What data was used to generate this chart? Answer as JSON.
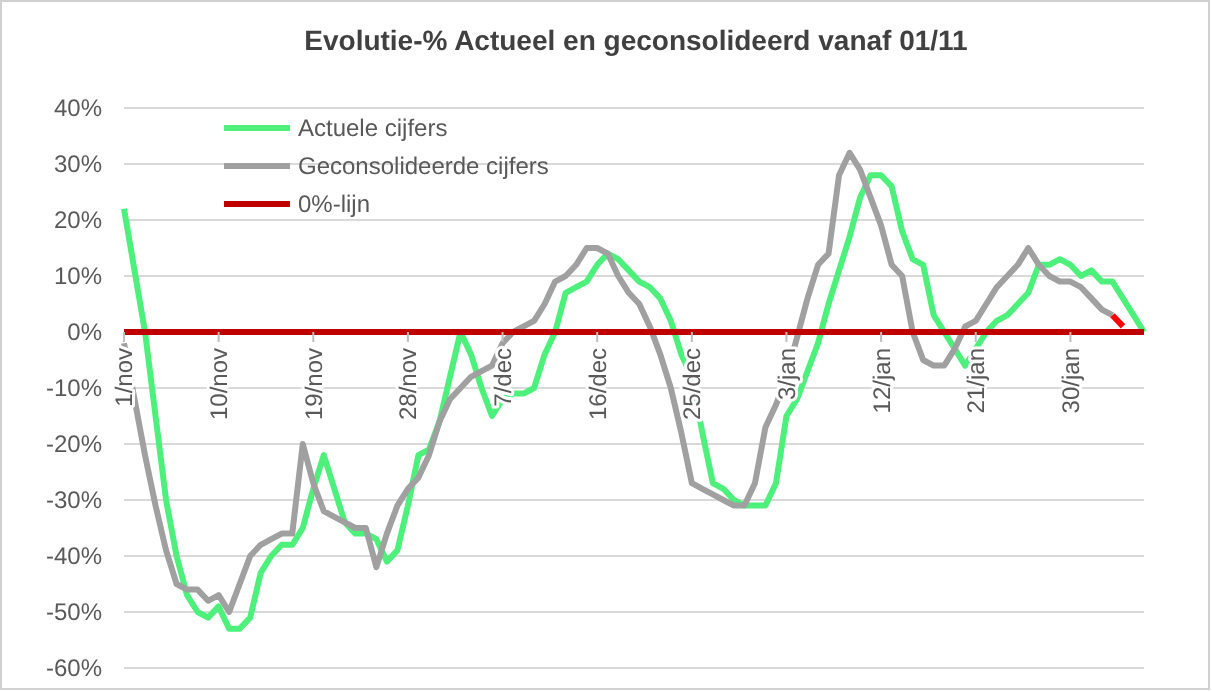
{
  "chart_data": {
    "type": "line",
    "title": "Evolutie-% Actueel en geconsolideerd vanaf 01/11",
    "categories": [
      "1/nov",
      null,
      null,
      null,
      null,
      null,
      null,
      null,
      null,
      "10/nov",
      null,
      null,
      null,
      null,
      null,
      null,
      null,
      null,
      "19/nov",
      null,
      null,
      null,
      null,
      null,
      null,
      null,
      null,
      "28/nov",
      null,
      null,
      null,
      null,
      null,
      null,
      null,
      null,
      "7/dec",
      null,
      null,
      null,
      null,
      null,
      null,
      null,
      null,
      "16/dec",
      null,
      null,
      null,
      null,
      null,
      null,
      null,
      null,
      "25/dec",
      null,
      null,
      null,
      null,
      null,
      null,
      null,
      null,
      "3/jan",
      null,
      null,
      null,
      null,
      null,
      null,
      null,
      null,
      "12/jan",
      null,
      null,
      null,
      null,
      null,
      null,
      null,
      null,
      "21/jan",
      null,
      null,
      null,
      null,
      null,
      null,
      null,
      null,
      "30/jan",
      null,
      null,
      null,
      null,
      null,
      null,
      null
    ],
    "series": [
      {
        "name": "Actuele cijfers",
        "color": "#4cf07a",
        "values": [
          22,
          11,
          0,
          -15,
          -30,
          -40,
          -47,
          -50,
          -51,
          -49,
          -53,
          -53,
          -51,
          -43,
          -40,
          -38,
          -38,
          -35,
          -28,
          -22,
          -28,
          -34,
          -36,
          -36,
          -37,
          -41,
          -39,
          -31,
          -22,
          -21,
          -16,
          -8,
          0,
          -4,
          -10,
          -15,
          -12,
          -11,
          -11,
          -10,
          -4,
          0,
          7,
          8,
          9,
          12,
          14,
          13,
          11,
          9,
          8,
          6,
          2,
          -4,
          -8,
          -18,
          -27,
          -28,
          -30,
          -31,
          -31,
          -31,
          -27,
          -15,
          -12,
          -7,
          -2,
          5,
          11,
          17,
          24,
          28,
          28,
          26,
          18,
          13,
          12,
          3,
          0,
          -3,
          -6,
          -3,
          0,
          2,
          3,
          5,
          7,
          12,
          12,
          13,
          12,
          10,
          11,
          9,
          9,
          6,
          3,
          0
        ]
      },
      {
        "name": "Geconsolideerde cijfers",
        "color": "#a0a0a0",
        "values": [
          -2,
          -12,
          -22,
          -31,
          -39,
          -45,
          -46,
          -46,
          -48,
          -47,
          -50,
          -45,
          -40,
          -38,
          -37,
          -36,
          -36,
          -20,
          -27,
          -32,
          -33,
          -34,
          -35,
          -35,
          -42,
          -36,
          -31,
          -28,
          -26,
          -22,
          -16,
          -12,
          -10,
          -8,
          -7,
          -6,
          -2,
          0,
          1,
          2,
          5,
          9,
          10,
          12,
          15,
          15,
          14,
          10,
          7,
          5,
          1,
          -4,
          -10,
          -18,
          -27,
          -28,
          -29,
          -30,
          -31,
          -31,
          -27,
          -17,
          -13,
          -8,
          -1,
          6,
          12,
          14,
          28,
          32,
          29,
          24,
          19,
          12,
          10,
          0,
          -5,
          -6,
          -6,
          -3,
          1,
          2,
          5,
          8,
          10,
          12,
          15,
          12,
          10,
          9,
          9,
          8,
          6,
          4,
          3,
          null,
          null,
          null
        ]
      },
      {
        "name": "0%-lijn",
        "color": "#c00000",
        "values": [
          0,
          0,
          0,
          0,
          0,
          0,
          0,
          0,
          0,
          0,
          0,
          0,
          0,
          0,
          0,
          0,
          0,
          0,
          0,
          0,
          0,
          0,
          0,
          0,
          0,
          0,
          0,
          0,
          0,
          0,
          0,
          0,
          0,
          0,
          0,
          0,
          0,
          0,
          0,
          0,
          0,
          0,
          0,
          0,
          0,
          0,
          0,
          0,
          0,
          0,
          0,
          0,
          0,
          0,
          0,
          0,
          0,
          0,
          0,
          0,
          0,
          0,
          0,
          0,
          0,
          0,
          0,
          0,
          0,
          0,
          0,
          0,
          0,
          0,
          0,
          0,
          0,
          0,
          0,
          0,
          0,
          0,
          0,
          0,
          0,
          0,
          0,
          0,
          0,
          0,
          0,
          0,
          0,
          0,
          0,
          0,
          0,
          0
        ]
      },
      {
        "color": "#ff0000",
        "values": [
          null,
          null,
          null,
          null,
          null,
          null,
          null,
          null,
          null,
          null,
          null,
          null,
          null,
          null,
          null,
          null,
          null,
          null,
          null,
          null,
          null,
          null,
          null,
          null,
          null,
          null,
          null,
          null,
          null,
          null,
          null,
          null,
          null,
          null,
          null,
          null,
          null,
          null,
          null,
          null,
          null,
          null,
          null,
          null,
          null,
          null,
          null,
          null,
          null,
          null,
          null,
          null,
          null,
          null,
          null,
          null,
          null,
          null,
          null,
          null,
          null,
          null,
          null,
          null,
          null,
          null,
          null,
          null,
          null,
          null,
          null,
          null,
          null,
          null,
          null,
          null,
          null,
          null,
          null,
          null,
          null,
          null,
          null,
          null,
          null,
          null,
          null,
          null,
          null,
          null,
          null,
          null,
          null,
          null,
          3,
          1,
          null,
          null
        ]
      }
    ],
    "ylim": [
      -60,
      40
    ],
    "yticks": [
      {
        "value": -60,
        "label": "-60%"
      },
      {
        "value": -50,
        "label": "-50%"
      },
      {
        "value": -40,
        "label": "-40%"
      },
      {
        "value": -30,
        "label": "-30%"
      },
      {
        "value": -20,
        "label": "-20%"
      },
      {
        "value": -10,
        "label": "-10%"
      },
      {
        "value": 0,
        "label": "0%"
      },
      {
        "value": 10,
        "label": "10%"
      },
      {
        "value": 20,
        "label": "20%"
      },
      {
        "value": 30,
        "label": "30%"
      },
      {
        "value": 40,
        "label": "40%"
      }
    ],
    "grid": "y",
    "legend": "top left",
    "marker": "none",
    "line_style": "solid"
  }
}
